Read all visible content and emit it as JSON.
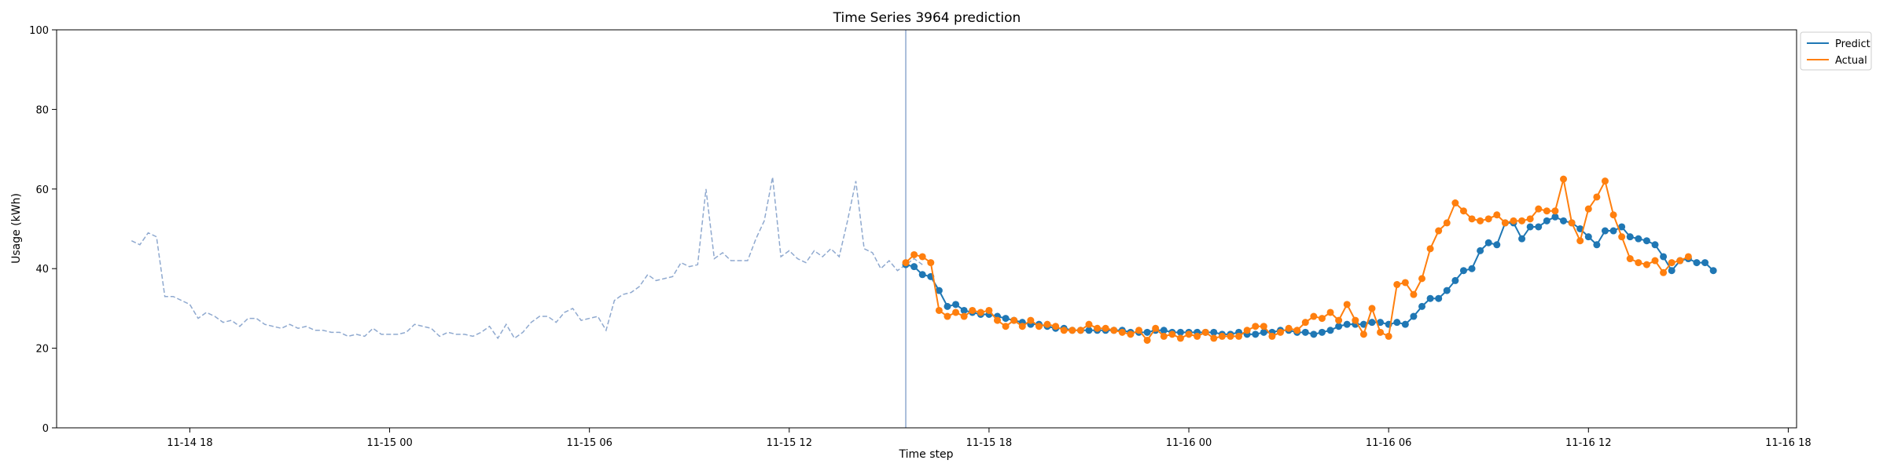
{
  "chart_data": {
    "type": "line",
    "title": "Time Series 3964 prediction",
    "xlabel": "Time step",
    "ylabel": "Usage (kWh)",
    "ylim": [
      0,
      100
    ],
    "yticks": [
      0,
      20,
      40,
      60,
      80,
      100
    ],
    "x_axis": {
      "unit": "hour",
      "range_labels": [
        "11-14 14:00",
        "11-16 18:15"
      ],
      "tick_labels": [
        "11-14 18",
        "11-15 00",
        "11-15 06",
        "11-15 12",
        "11-15 18",
        "11-16 00",
        "11-16 06",
        "11-16 12",
        "11-16 18"
      ]
    },
    "prediction_start": "11-15 15:30",
    "legend": {
      "position": "top-right (outside plot)",
      "entries": [
        "Predict",
        "Actual"
      ]
    },
    "colors": {
      "history": "#8fa9cf",
      "predict": "#1f77b4",
      "actual": "#ff7f0e",
      "divider": "#8fa9cf"
    },
    "series": [
      {
        "role": "history",
        "style": "dashed",
        "x_start": "11-14 16:15",
        "x_step_minutes": 15,
        "values": [
          47,
          46,
          49,
          48,
          33,
          33,
          32,
          31,
          27.5,
          29,
          28,
          26.5,
          27,
          25.5,
          27.5,
          27.5,
          26,
          25.5,
          25,
          26,
          25,
          25.5,
          24.5,
          24.5,
          24,
          24,
          23,
          23.5,
          23,
          25,
          23.5,
          23.5,
          23.5,
          24,
          26,
          25.5,
          25,
          23,
          24,
          23.5,
          23.5,
          23,
          24,
          25.5,
          22.5,
          26,
          22.5,
          24,
          26.5,
          28,
          28,
          26.5,
          29,
          30,
          27,
          27.5,
          28,
          24.5,
          32,
          33.5,
          34,
          35.5,
          38.5,
          37,
          37.5,
          38,
          41.5,
          40.5,
          41,
          60,
          42.5,
          44,
          42,
          42,
          42,
          47.5,
          52,
          63,
          43,
          44.5,
          42.5,
          41.5,
          44.5,
          43,
          45,
          43,
          52,
          62,
          45,
          44,
          40,
          42,
          39.5,
          41,
          42.5,
          41
        ]
      },
      {
        "name": "Predict",
        "role": "predict",
        "style": "solid-markers",
        "x_start": "11-15 15:30",
        "x_step_minutes": 15,
        "values": [
          41,
          40.5,
          38.5,
          38,
          34.5,
          30.5,
          31,
          29.5,
          29,
          28.5,
          28.5,
          28,
          27.5,
          27,
          26.5,
          26,
          26,
          25.5,
          25,
          25,
          24.5,
          24.5,
          24.5,
          24.5,
          24.5,
          24.5,
          24.5,
          24,
          24,
          24,
          24.5,
          24.5,
          24,
          24,
          24,
          24,
          24,
          24,
          23.5,
          23.5,
          24,
          23.5,
          23.5,
          24,
          24,
          24.5,
          24.5,
          24,
          24,
          23.5,
          24,
          24.5,
          25.5,
          26,
          26,
          26,
          26.5,
          26.5,
          26,
          26.5,
          26,
          28,
          30.5,
          32.5,
          32.5,
          34.5,
          37,
          39.5,
          40,
          44.5,
          46.5,
          46,
          51.5,
          51.5,
          47.5,
          50.5,
          50.5,
          52,
          53,
          52,
          51.5,
          50,
          48,
          46,
          49.5,
          49.5,
          50.5,
          48,
          47.5,
          47,
          46,
          43,
          39.5,
          42,
          42.5,
          41.5,
          41.5,
          39.5
        ]
      },
      {
        "name": "Actual",
        "role": "actual",
        "style": "solid-markers",
        "x_start": "11-15 15:30",
        "x_step_minutes": 15,
        "values": [
          41.5,
          43.5,
          43,
          41.5,
          29.5,
          28,
          29,
          28,
          29.5,
          29,
          29.5,
          27,
          25.5,
          27,
          25.5,
          27,
          25.5,
          26,
          25.5,
          24.5,
          24.5,
          24.5,
          26,
          25,
          25,
          24.5,
          24,
          23.5,
          24.5,
          22,
          25,
          23,
          23.5,
          22.5,
          23.5,
          23,
          24,
          22.5,
          23,
          23,
          23,
          24.5,
          25.5,
          25.5,
          23,
          24,
          25,
          24.5,
          26.5,
          28,
          27.5,
          29,
          27,
          31,
          27,
          23.5,
          30,
          24,
          23,
          36,
          36.5,
          33.5,
          37.5,
          45,
          49.5,
          51.5,
          56.5,
          54.5,
          52.5,
          52,
          52.5,
          53.5,
          51.5,
          52,
          52,
          52.5,
          55,
          54.5,
          54.5,
          62.5,
          51.5,
          47,
          55,
          58,
          62,
          53.5,
          48,
          42.5,
          41.5,
          41,
          42,
          39,
          41.5,
          42,
          43
        ]
      }
    ]
  }
}
